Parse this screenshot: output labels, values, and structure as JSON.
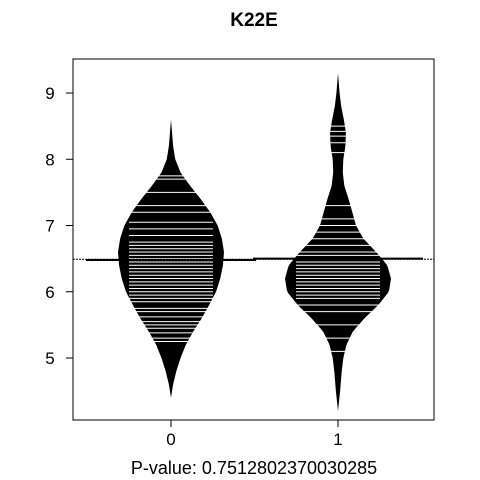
{
  "chart_data": {
    "type": "beanplot",
    "title": "K22E",
    "xlabel": "P-value: 0.7512802370030285",
    "categories": [
      "0",
      "1"
    ],
    "y_ticks": [
      5,
      6,
      7,
      8,
      9
    ],
    "ylim": [
      4.0,
      9.5
    ],
    "overall_mean": 6.49,
    "grid": false,
    "legend": "none",
    "colors": {
      "fill": "#000000",
      "beanlines": "#ffffff",
      "background": "#ffffff"
    },
    "groups": [
      {
        "category": "0",
        "mean": 6.48,
        "range": [
          4.4,
          8.6
        ],
        "density_profile": [
          [
            4.4,
            0.0
          ],
          [
            4.6,
            0.04
          ],
          [
            4.8,
            0.1
          ],
          [
            5.0,
            0.18
          ],
          [
            5.2,
            0.28
          ],
          [
            5.4,
            0.42
          ],
          [
            5.6,
            0.58
          ],
          [
            5.8,
            0.72
          ],
          [
            6.0,
            0.85
          ],
          [
            6.2,
            0.93
          ],
          [
            6.4,
            0.98
          ],
          [
            6.6,
            1.0
          ],
          [
            6.8,
            0.96
          ],
          [
            7.0,
            0.88
          ],
          [
            7.2,
            0.74
          ],
          [
            7.4,
            0.56
          ],
          [
            7.6,
            0.36
          ],
          [
            7.8,
            0.18
          ],
          [
            8.0,
            0.08
          ],
          [
            8.2,
            0.04
          ],
          [
            8.4,
            0.02
          ],
          [
            8.6,
            0.0
          ]
        ],
        "observations": [
          5.25,
          5.3,
          5.38,
          5.45,
          5.5,
          5.55,
          5.62,
          5.7,
          5.75,
          5.85,
          5.9,
          5.95,
          6.0,
          6.05,
          6.1,
          6.15,
          6.2,
          6.25,
          6.3,
          6.35,
          6.4,
          6.45,
          6.5,
          6.55,
          6.6,
          6.65,
          6.7,
          6.75,
          6.85,
          6.95,
          7.05,
          7.2,
          7.3,
          7.5,
          7.7,
          7.75
        ]
      },
      {
        "category": "1",
        "mean": 6.5,
        "range": [
          4.2,
          9.3
        ],
        "density_profile": [
          [
            4.2,
            0.0
          ],
          [
            4.5,
            0.04
          ],
          [
            4.8,
            0.07
          ],
          [
            5.0,
            0.1
          ],
          [
            5.2,
            0.16
          ],
          [
            5.4,
            0.28
          ],
          [
            5.6,
            0.5
          ],
          [
            5.8,
            0.76
          ],
          [
            6.0,
            0.96
          ],
          [
            6.2,
            1.0
          ],
          [
            6.4,
            0.93
          ],
          [
            6.6,
            0.72
          ],
          [
            6.8,
            0.48
          ],
          [
            7.0,
            0.34
          ],
          [
            7.2,
            0.27
          ],
          [
            7.4,
            0.2
          ],
          [
            7.6,
            0.12
          ],
          [
            7.8,
            0.09
          ],
          [
            8.0,
            0.1
          ],
          [
            8.2,
            0.14
          ],
          [
            8.4,
            0.15
          ],
          [
            8.6,
            0.11
          ],
          [
            8.8,
            0.06
          ],
          [
            9.0,
            0.03
          ],
          [
            9.3,
            0.0
          ]
        ],
        "observations": [
          5.1,
          5.3,
          5.5,
          5.7,
          5.8,
          5.9,
          5.95,
          6.0,
          6.05,
          6.1,
          6.15,
          6.2,
          6.25,
          6.3,
          6.35,
          6.4,
          6.45,
          6.5,
          6.55,
          6.6,
          6.7,
          6.8,
          6.9,
          7.0,
          7.1,
          7.3,
          8.1,
          8.25,
          8.35,
          8.42,
          8.5
        ]
      }
    ]
  }
}
